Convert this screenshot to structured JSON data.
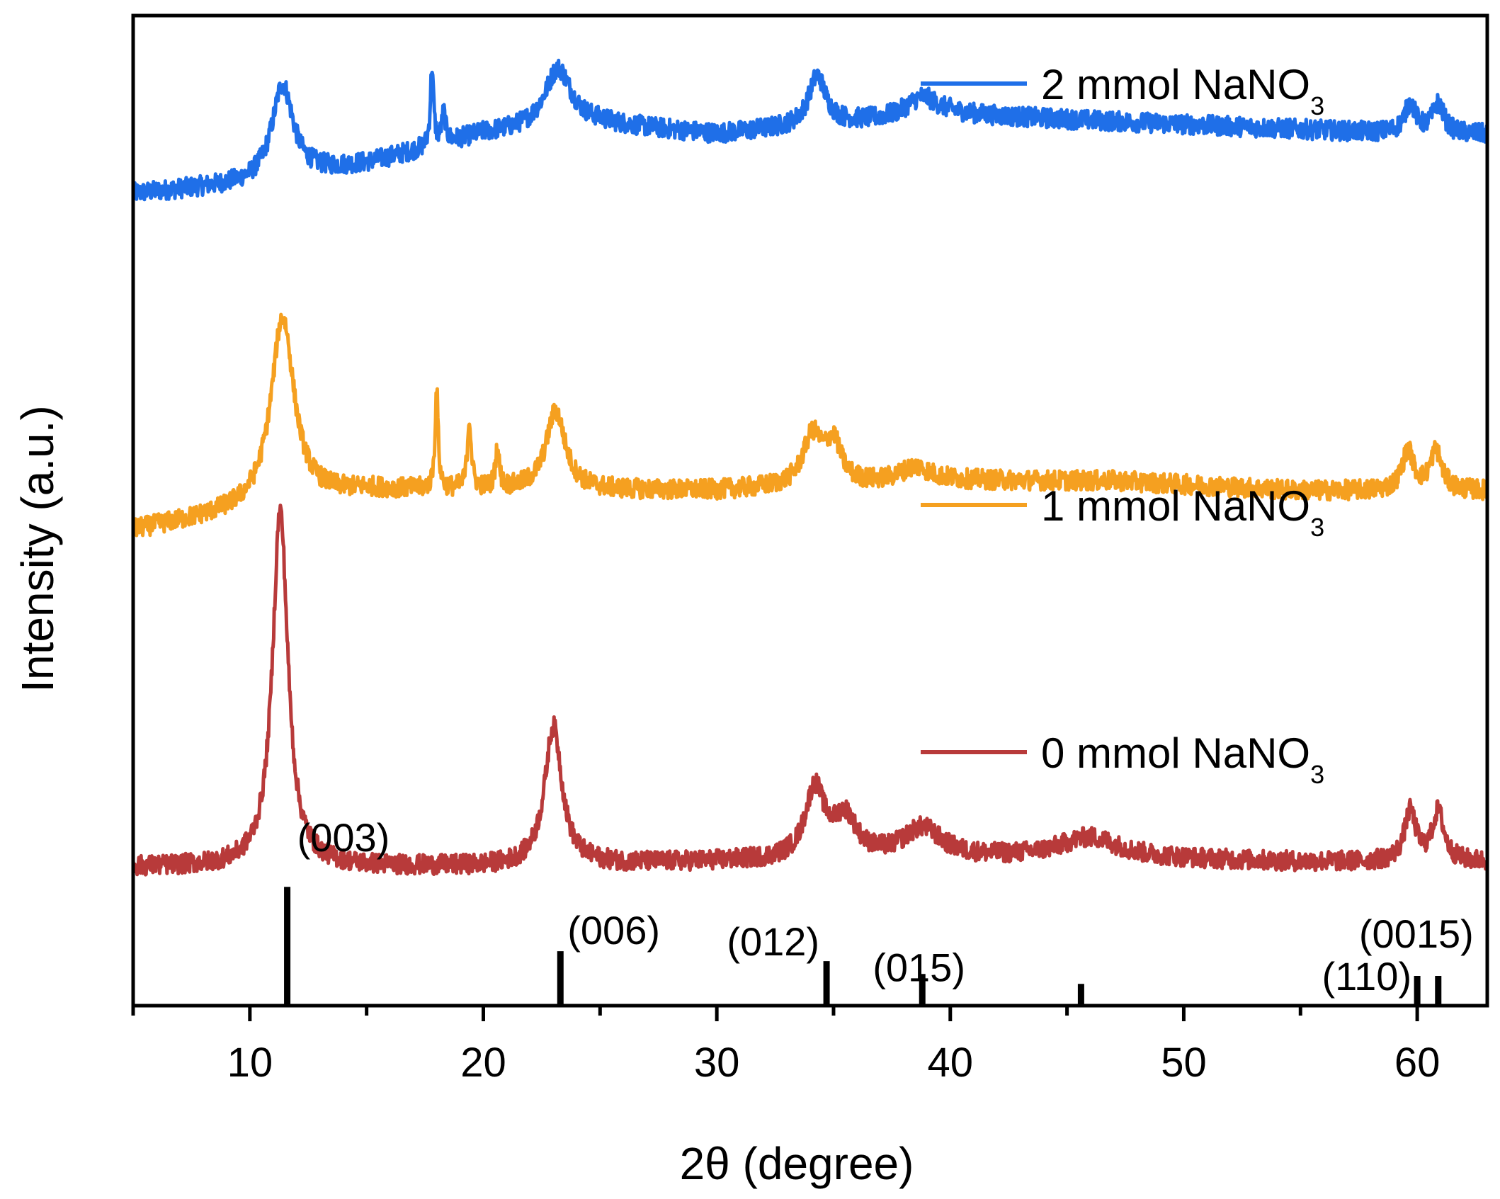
{
  "chart_data": {
    "type": "line",
    "title": "",
    "xlabel": "2θ (degree)",
    "ylabel": "Intensity (a.u.)",
    "xlim": [
      5,
      63
    ],
    "xticks": [
      10,
      20,
      30,
      40,
      50,
      60
    ],
    "xtick_labels": [
      "10",
      "20",
      "30",
      "40",
      "50",
      "60"
    ],
    "grid": false,
    "legend_position": "right, beside each trace",
    "series": [
      {
        "name": "2 mmol NaNO3",
        "legend_main": "2 mmol NaNO",
        "legend_sub": "3",
        "color": "#1f6fe8",
        "baseline": 0.83,
        "noise": 0.01,
        "background": [
          [
            5,
            -0.01
          ],
          [
            10,
            0.0
          ],
          [
            15,
            0.02
          ],
          [
            20,
            0.05
          ],
          [
            25,
            0.06
          ],
          [
            30,
            0.05
          ],
          [
            40,
            0.07
          ],
          [
            50,
            0.06
          ],
          [
            60,
            0.05
          ],
          [
            63,
            0.05
          ]
        ],
        "peaks": [
          [
            11.4,
            0.095,
            0.55
          ],
          [
            17.8,
            0.08,
            0.08
          ],
          [
            18.3,
            0.03,
            0.1
          ],
          [
            23.2,
            0.06,
            0.7
          ],
          [
            34.3,
            0.05,
            0.45
          ],
          [
            38.8,
            0.02,
            0.8
          ],
          [
            59.7,
            0.03,
            0.3
          ],
          [
            60.9,
            0.03,
            0.3
          ]
        ]
      },
      {
        "name": "1 mmol NaNO3",
        "legend_main": "1 mmol NaNO",
        "legend_sub": "3",
        "color": "#f5a020",
        "baseline": 0.5,
        "noise": 0.01,
        "background": [
          [
            5,
            -0.02
          ],
          [
            10,
            0.0
          ],
          [
            15,
            0.02
          ],
          [
            25,
            0.02
          ],
          [
            30,
            0.02
          ],
          [
            40,
            0.03
          ],
          [
            47,
            0.03
          ],
          [
            55,
            0.02
          ],
          [
            63,
            0.02
          ]
        ],
        "peaks": [
          [
            11.4,
            0.19,
            0.6
          ],
          [
            18.0,
            0.1,
            0.08
          ],
          [
            19.4,
            0.07,
            0.1
          ],
          [
            20.6,
            0.04,
            0.1
          ],
          [
            23.1,
            0.08,
            0.5
          ],
          [
            34.1,
            0.05,
            0.5
          ],
          [
            35.0,
            0.04,
            0.4
          ],
          [
            38.5,
            0.015,
            0.8
          ],
          [
            59.6,
            0.04,
            0.3
          ],
          [
            60.8,
            0.04,
            0.3
          ]
        ]
      },
      {
        "name": "0 mmol NaNO3",
        "legend_main": "0 mmol NaNO",
        "legend_sub": "3",
        "color": "#b83a3a",
        "baseline": 0.14,
        "noise": 0.01,
        "background": [
          [
            5,
            0.0
          ],
          [
            10,
            0.0
          ],
          [
            20,
            0.0
          ],
          [
            30,
            0.005
          ],
          [
            45,
            0.01
          ],
          [
            55,
            0.005
          ],
          [
            63,
            0.005
          ]
        ],
        "peaks": [
          [
            11.3,
            0.36,
            0.4
          ],
          [
            23.0,
            0.14,
            0.45
          ],
          [
            34.2,
            0.07,
            0.5
          ],
          [
            35.5,
            0.04,
            0.6
          ],
          [
            38.8,
            0.03,
            1.0
          ],
          [
            46.0,
            0.02,
            1.5
          ],
          [
            59.7,
            0.05,
            0.3
          ],
          [
            60.9,
            0.05,
            0.3
          ]
        ]
      }
    ],
    "reference_lines": [
      {
        "x": 11.6,
        "height": 0.12,
        "label": "(003)"
      },
      {
        "x": 23.3,
        "height": 0.055,
        "label": "(006)"
      },
      {
        "x": 34.7,
        "height": 0.045,
        "label": "(012)"
      },
      {
        "x": 38.8,
        "height": 0.032,
        "label": "(015)"
      },
      {
        "x": 45.6,
        "height": 0.022,
        "label": ""
      },
      {
        "x": 60.0,
        "height": 0.03,
        "label": "(110)"
      },
      {
        "x": 60.9,
        "height": 0.03,
        "label": "(0015)"
      }
    ]
  }
}
